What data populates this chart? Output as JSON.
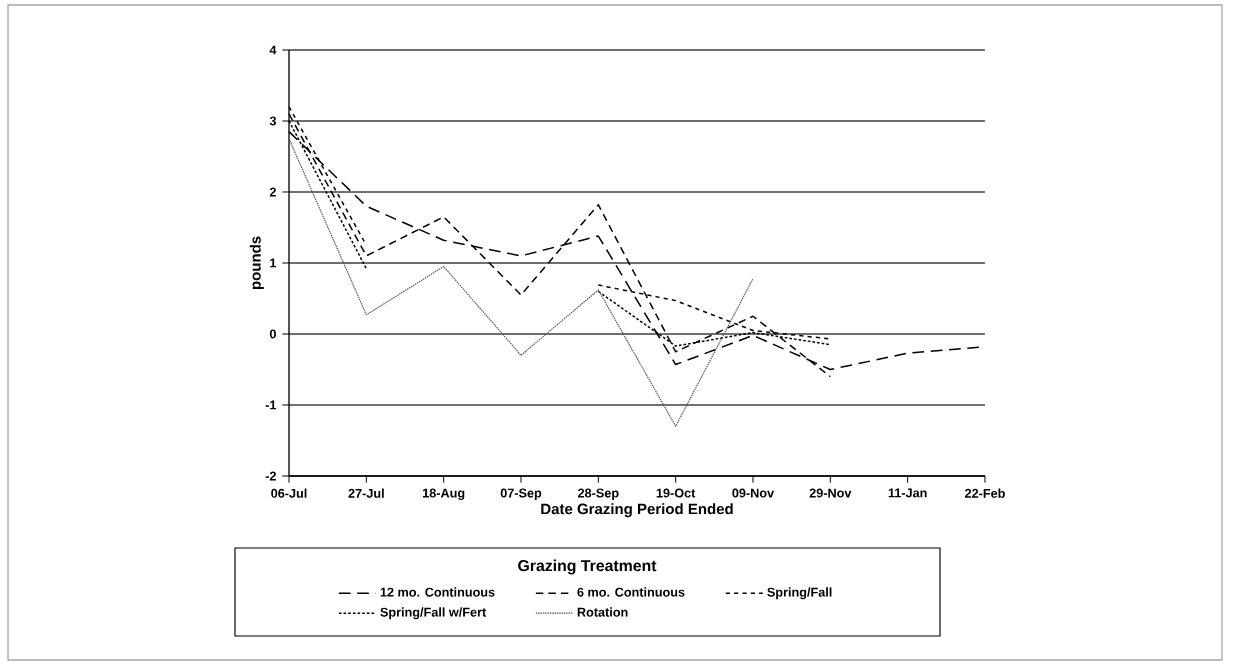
{
  "chart_data": {
    "type": "line",
    "xlabel": "Date Grazing Period Ended",
    "ylabel": "pounds",
    "legend_title": "Grazing Treatment",
    "categories": [
      "06-Jul",
      "27-Jul",
      "18-Aug",
      "07-Sep",
      "28-Sep",
      "19-Oct",
      "09-Nov",
      "29-Nov",
      "11-Jan",
      "22-Feb"
    ],
    "ylim": [
      -2,
      4
    ],
    "yticks": [
      -2,
      -1,
      0,
      1,
      2,
      3,
      4
    ],
    "grid": "y",
    "legend": "bottom",
    "marker": "none",
    "series": [
      {
        "name": "12 mo. Continuous",
        "color": "#000000",
        "line_style": "dashed",
        "values": [
          2.85,
          1.8,
          1.32,
          1.1,
          1.38,
          -0.43,
          -0.02,
          -0.5,
          -0.27,
          -0.18
        ]
      },
      {
        "name": "6 mo. Continuous",
        "color": "#000000",
        "line_style": "dashed",
        "values": [
          3.1,
          1.1,
          1.65,
          0.55,
          1.82,
          -0.25,
          0.25,
          -0.6,
          null,
          null
        ]
      },
      {
        "name": "Spring/Fall",
        "color": "#000000",
        "line_style": "dashed",
        "values": [
          3.2,
          1.25,
          null,
          null,
          0.69,
          0.47,
          0.05,
          -0.07,
          null,
          null
        ]
      },
      {
        "name": "Spring/Fall w/Fert",
        "color": "#000000",
        "line_style": "dashed",
        "values": [
          3.0,
          0.92,
          null,
          null,
          0.6,
          -0.17,
          0.02,
          -0.15,
          null,
          null
        ]
      },
      {
        "name": "Rotation",
        "color": "#555555",
        "line_style": "dotted",
        "values": [
          2.75,
          0.27,
          0.95,
          -0.3,
          0.62,
          -1.3,
          0.78,
          null,
          null,
          null
        ]
      }
    ]
  }
}
